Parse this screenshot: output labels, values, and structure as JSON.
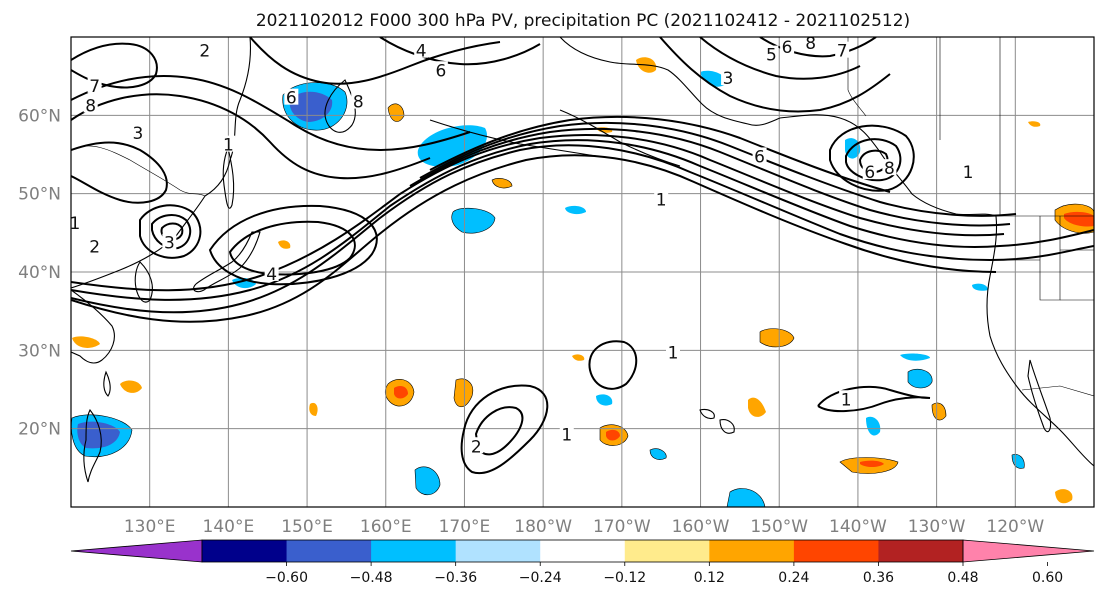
{
  "title": "2021102012 F000 300 hPa PV, precipitation PC (2021102412 - 2021102512)",
  "map": {
    "lon_range": [
      120,
      250
    ],
    "lat_range": [
      10,
      70
    ],
    "lat_ticks": [
      {
        "value": 20,
        "label": "20°N"
      },
      {
        "value": 30,
        "label": "30°N"
      },
      {
        "value": 40,
        "label": "40°N"
      },
      {
        "value": 50,
        "label": "50°N"
      },
      {
        "value": 60,
        "label": "60°N"
      }
    ],
    "lon_ticks": [
      {
        "value": 130,
        "label": "130°E"
      },
      {
        "value": 140,
        "label": "140°E"
      },
      {
        "value": 150,
        "label": "150°E"
      },
      {
        "value": 160,
        "label": "160°E"
      },
      {
        "value": 170,
        "label": "170°E"
      },
      {
        "value": 180,
        "label": "180°W"
      },
      {
        "value": 190,
        "label": "170°W"
      },
      {
        "value": 200,
        "label": "160°W"
      },
      {
        "value": 210,
        "label": "150°W"
      },
      {
        "value": 220,
        "label": "140°W"
      },
      {
        "value": 230,
        "label": "130°W"
      },
      {
        "value": 240,
        "label": "120°W"
      }
    ],
    "grid": true,
    "contour_labels": [
      {
        "text": "1",
        "lon": 196.5,
        "lat": 29.5
      },
      {
        "text": "1",
        "lon": 218.5,
        "lat": 23.5
      },
      {
        "text": "1",
        "lon": 183.0,
        "lat": 19.0
      },
      {
        "text": "2",
        "lon": 171.5,
        "lat": 17.5
      },
      {
        "text": "1",
        "lon": 120.5,
        "lat": 46.0
      },
      {
        "text": "2",
        "lon": 123.0,
        "lat": 43.0
      },
      {
        "text": "3",
        "lon": 132.5,
        "lat": 43.5
      },
      {
        "text": "4",
        "lon": 145.5,
        "lat": 39.5
      },
      {
        "text": "6",
        "lon": 221.5,
        "lat": 52.5
      },
      {
        "text": "8",
        "lon": 224.0,
        "lat": 53.0
      },
      {
        "text": "6",
        "lon": 207.5,
        "lat": 54.5
      },
      {
        "text": "1",
        "lon": 195.0,
        "lat": 49.0
      },
      {
        "text": "8",
        "lon": 122.5,
        "lat": 61.0
      },
      {
        "text": "7",
        "lon": 123.0,
        "lat": 63.5
      },
      {
        "text": "6",
        "lon": 148.0,
        "lat": 62.0
      },
      {
        "text": "8",
        "lon": 156.5,
        "lat": 61.5
      },
      {
        "text": "6",
        "lon": 167.0,
        "lat": 65.5
      },
      {
        "text": "4",
        "lon": 164.5,
        "lat": 68.0
      },
      {
        "text": "2",
        "lon": 137.0,
        "lat": 68.0
      },
      {
        "text": "1",
        "lon": 140.0,
        "lat": 56.0
      },
      {
        "text": "3",
        "lon": 128.5,
        "lat": 57.5
      },
      {
        "text": "3",
        "lon": 203.5,
        "lat": 64.5
      },
      {
        "text": "5",
        "lon": 209.0,
        "lat": 67.5
      },
      {
        "text": "6",
        "lon": 211.0,
        "lat": 68.5
      },
      {
        "text": "8",
        "lon": 214.0,
        "lat": 69.0
      },
      {
        "text": "7",
        "lon": 218.0,
        "lat": 68.0
      },
      {
        "text": "1",
        "lon": 234.0,
        "lat": 52.5
      }
    ]
  },
  "colorbar": {
    "ticks": [
      "−0.60",
      "−0.48",
      "−0.36",
      "−0.24",
      "−0.12",
      "0.12",
      "0.24",
      "0.36",
      "0.48",
      "0.60"
    ],
    "colors": [
      "#9932cc",
      "#00008b",
      "#3a5fcd",
      "#00bfff",
      "#b0e2ff",
      "#ffffff",
      "#ffeb8c",
      "#ffa500",
      "#ff4500",
      "#b22222",
      "#ff82ab"
    ]
  },
  "palette": {
    "precip_pos_1": "#ffeb8c",
    "precip_pos_2": "#ffa500",
    "precip_pos_3": "#ff4500",
    "precip_neg_1": "#b0e2ff",
    "precip_neg_2": "#00bfff",
    "precip_neg_3": "#3a5fcd"
  }
}
